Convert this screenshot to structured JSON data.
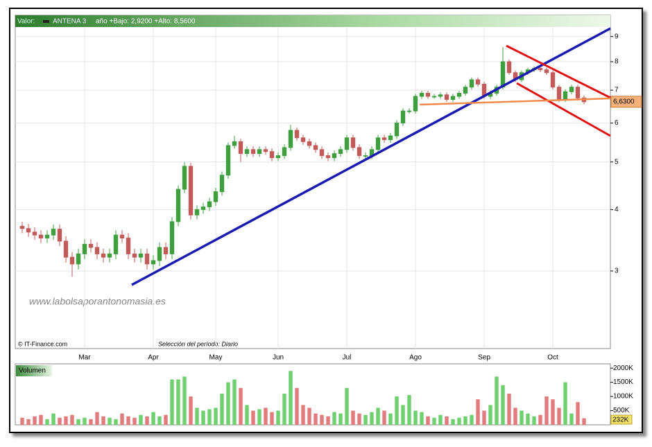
{
  "chart_data": [
    {
      "type": "candlestick",
      "header_label": "Valor:",
      "title": "ANTENA 3",
      "range_text": "año +Bajo: 2,9200 +Alto: 8,5600",
      "watermark": "www.labolsaporantonomasia.es",
      "source": "© IT-Finance.com",
      "period": "Selección del período: Diario",
      "last_label": "6,6300",
      "log_scale": true,
      "grid": true,
      "ylim": [
        2.085,
        9.38
      ],
      "yticks": [
        3,
        4,
        5,
        6,
        7,
        8,
        9
      ],
      "up_color": "#3f9f3f",
      "down_color": "#c25a5a",
      "categories": [
        null,
        null,
        null,
        null,
        null,
        null,
        null,
        null,
        null,
        null,
        "Mar",
        null,
        null,
        null,
        null,
        null,
        null,
        null,
        null,
        null,
        null,
        "Apr",
        null,
        null,
        null,
        null,
        null,
        null,
        null,
        null,
        null,
        "May",
        null,
        null,
        null,
        null,
        null,
        null,
        null,
        null,
        null,
        "Jun",
        null,
        null,
        null,
        null,
        null,
        null,
        null,
        null,
        null,
        null,
        "Jul",
        null,
        null,
        null,
        null,
        null,
        null,
        null,
        null,
        null,
        null,
        "Ago",
        null,
        null,
        null,
        null,
        null,
        null,
        null,
        null,
        null,
        null,
        "Sep",
        null,
        null,
        null,
        null,
        null,
        null,
        null,
        null,
        null,
        null,
        "Oct",
        null,
        null,
        null,
        null,
        null
      ],
      "open": [
        3.7,
        3.66,
        3.6,
        3.55,
        3.5,
        3.55,
        3.65,
        3.45,
        3.2,
        3.1,
        3.25,
        3.4,
        3.35,
        3.25,
        3.2,
        3.25,
        3.55,
        3.5,
        3.25,
        3.2,
        3.25,
        3.1,
        3.15,
        3.35,
        3.25,
        3.78,
        4.4,
        4.9,
        3.9,
        4.0,
        4.05,
        4.15,
        4.35,
        4.7,
        5.4,
        5.5,
        5.2,
        5.3,
        5.2,
        5.3,
        5.25,
        5.1,
        5.15,
        5.35,
        5.8,
        5.6,
        5.5,
        5.4,
        5.3,
        5.15,
        5.1,
        5.2,
        5.3,
        5.6,
        5.35,
        5.15,
        5.15,
        5.3,
        5.6,
        5.55,
        5.65,
        6.0,
        6.35,
        6.35,
        6.8,
        6.9,
        6.8,
        6.8,
        6.85,
        6.7,
        6.8,
        6.9,
        7.1,
        7.35,
        7.2,
        6.8,
        6.9,
        7.1,
        8.0,
        7.6,
        7.35,
        7.6,
        7.7,
        7.75,
        7.7,
        7.6,
        7.1,
        6.7,
        6.95,
        7.1,
        6.75
      ],
      "high": [
        3.78,
        3.74,
        3.68,
        3.63,
        3.63,
        3.73,
        3.73,
        3.53,
        3.28,
        3.33,
        3.48,
        3.48,
        3.43,
        3.33,
        3.33,
        3.63,
        3.63,
        3.58,
        3.33,
        3.33,
        3.33,
        3.23,
        3.43,
        3.43,
        3.86,
        4.48,
        5.0,
        4.98,
        4.08,
        4.13,
        4.23,
        4.43,
        4.78,
        5.48,
        5.65,
        5.58,
        5.38,
        5.38,
        5.38,
        5.38,
        5.33,
        5.23,
        5.43,
        5.95,
        5.88,
        5.68,
        5.58,
        5.48,
        5.38,
        5.23,
        5.28,
        5.38,
        5.68,
        5.68,
        5.43,
        5.23,
        5.38,
        5.68,
        5.68,
        5.73,
        6.08,
        6.43,
        6.43,
        6.88,
        6.98,
        6.98,
        6.88,
        6.93,
        6.93,
        6.88,
        6.98,
        7.18,
        7.43,
        7.43,
        7.28,
        6.98,
        7.18,
        8.56,
        8.08,
        7.68,
        7.68,
        7.78,
        7.83,
        7.83,
        7.78,
        7.68,
        7.18,
        7.03,
        7.18,
        7.18,
        6.83
      ],
      "low": [
        3.58,
        3.52,
        3.47,
        3.42,
        3.42,
        3.47,
        3.37,
        3.12,
        2.92,
        3.02,
        3.17,
        3.27,
        3.17,
        3.12,
        3.12,
        3.17,
        3.42,
        3.17,
        3.12,
        3.12,
        3.02,
        3.02,
        3.07,
        3.17,
        3.17,
        3.7,
        4.32,
        3.82,
        3.82,
        3.92,
        3.97,
        4.07,
        4.27,
        4.62,
        5.32,
        5.0,
        5.12,
        5.12,
        5.12,
        5.17,
        5.02,
        5.02,
        5.07,
        5.27,
        5.52,
        5.42,
        5.32,
        5.22,
        5.07,
        5.02,
        5.02,
        5.12,
        5.22,
        5.27,
        5.07,
        5.07,
        5.07,
        5.22,
        5.47,
        5.47,
        5.57,
        5.92,
        6.27,
        6.27,
        6.72,
        6.72,
        6.72,
        6.72,
        6.62,
        6.62,
        6.72,
        6.82,
        7.02,
        7.12,
        6.72,
        6.72,
        6.82,
        7.02,
        7.52,
        7.27,
        7.27,
        7.52,
        7.62,
        7.62,
        7.52,
        7.02,
        6.62,
        6.62,
        6.87,
        6.67,
        6.55
      ],
      "close": [
        3.66,
        3.6,
        3.55,
        3.5,
        3.55,
        3.65,
        3.45,
        3.2,
        3.1,
        3.25,
        3.4,
        3.35,
        3.25,
        3.2,
        3.25,
        3.55,
        3.5,
        3.25,
        3.2,
        3.25,
        3.1,
        3.15,
        3.35,
        3.25,
        3.78,
        4.4,
        4.9,
        3.9,
        4.0,
        4.05,
        4.15,
        4.35,
        4.7,
        5.4,
        5.5,
        5.2,
        5.3,
        5.2,
        5.3,
        5.25,
        5.1,
        5.15,
        5.35,
        5.8,
        5.6,
        5.5,
        5.4,
        5.3,
        5.15,
        5.1,
        5.2,
        5.3,
        5.6,
        5.35,
        5.15,
        5.15,
        5.3,
        5.6,
        5.55,
        5.65,
        6.0,
        6.35,
        6.35,
        6.8,
        6.9,
        6.8,
        6.8,
        6.85,
        6.7,
        6.8,
        6.9,
        7.1,
        7.35,
        7.2,
        6.8,
        6.9,
        7.1,
        8.0,
        7.6,
        7.35,
        7.6,
        7.7,
        7.75,
        7.7,
        7.6,
        7.1,
        6.7,
        6.95,
        7.1,
        6.75,
        6.63
      ]
    },
    {
      "type": "bar",
      "title": "Volumen",
      "last_label": "232K",
      "ylim": [
        0,
        2150000
      ],
      "yticks": [
        {
          "value": 500000,
          "label": "500K"
        },
        {
          "value": 1000000,
          "label": "1000K"
        },
        {
          "value": 1500000,
          "label": "1500K"
        },
        {
          "value": 2000000,
          "label": "2000K"
        }
      ],
      "up_color": "#6fd06f",
      "down_color": "#e27b7b",
      "values": [
        250000,
        200000,
        300000,
        350000,
        200000,
        400000,
        250000,
        300000,
        350000,
        200000,
        250000,
        200000,
        450000,
        300000,
        250000,
        200000,
        400000,
        300000,
        250000,
        350000,
        300000,
        450000,
        300000,
        350000,
        1600000,
        1600000,
        1700000,
        1000000,
        600000,
        500000,
        550000,
        600000,
        1100000,
        1500000,
        1600000,
        1300000,
        700000,
        500000,
        550000,
        600000,
        450000,
        500000,
        1100000,
        1900000,
        1300000,
        700000,
        600000,
        400000,
        350000,
        300000,
        450000,
        400000,
        1300000,
        500000,
        400000,
        350000,
        450000,
        600000,
        500000,
        400000,
        1000000,
        700000,
        1050000,
        500000,
        450000,
        300000,
        250000,
        350000,
        300000,
        200000,
        250000,
        300000,
        350000,
        900000,
        500000,
        700000,
        1700000,
        1400000,
        1100000,
        600000,
        500000,
        400000,
        300000,
        350000,
        1000000,
        900000,
        600000,
        1500000,
        400000,
        800000,
        232000
      ]
    }
  ]
}
